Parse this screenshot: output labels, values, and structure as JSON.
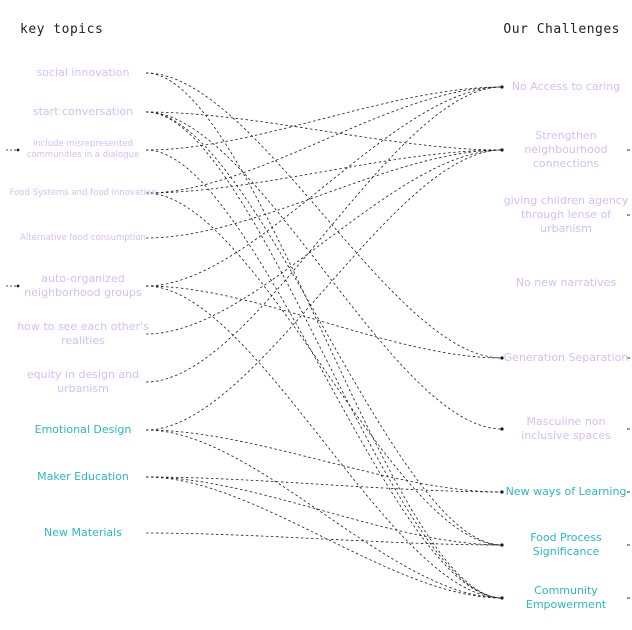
{
  "titles": {
    "left": "key topics",
    "right": "Our Challenges"
  },
  "colors": {
    "light": "#d7bdf5",
    "accent": "#2bb8c4",
    "line": "#1a1a1a"
  },
  "left_nodes": [
    {
      "id": "L1",
      "label": "social innovation",
      "style": "light",
      "size": "m"
    },
    {
      "id": "L2",
      "label": "start conversation",
      "style": "light",
      "size": "m"
    },
    {
      "id": "L3",
      "label": "include misrepresented communities in a dialogue",
      "style": "light",
      "size": "s"
    },
    {
      "id": "L4",
      "label": "Food Systems and food innovation",
      "style": "light",
      "size": "s"
    },
    {
      "id": "L5",
      "label": "Alternative food consumption",
      "style": "light",
      "size": "s"
    },
    {
      "id": "L6",
      "label": "auto-organized neighborhood groups",
      "style": "light",
      "size": "m"
    },
    {
      "id": "L7",
      "label": "how to see each other's realities",
      "style": "light",
      "size": "m"
    },
    {
      "id": "L8",
      "label": "equity in design and urbanism",
      "style": "light",
      "size": "m"
    },
    {
      "id": "L9",
      "label": "Emotional Design",
      "style": "accent",
      "size": "m"
    },
    {
      "id": "L10",
      "label": "Maker Education",
      "style": "accent",
      "size": "m"
    },
    {
      "id": "L11",
      "label": "New Materials",
      "style": "accent",
      "size": "m"
    }
  ],
  "right_nodes": [
    {
      "id": "R1",
      "label": "No Access to caring",
      "style": "light",
      "size": "m"
    },
    {
      "id": "R2",
      "label": "Strengthen neighbourhood connections",
      "style": "light",
      "size": "m"
    },
    {
      "id": "R3",
      "label": "giving children agency through lense of urbanism",
      "style": "light",
      "size": "m"
    },
    {
      "id": "R4",
      "label": "No new narratives",
      "style": "light",
      "size": "m"
    },
    {
      "id": "R5",
      "label": "Generation Separation",
      "style": "light",
      "size": "m"
    },
    {
      "id": "R6",
      "label": "Masculine non inclusive spaces",
      "style": "light",
      "size": "m"
    },
    {
      "id": "R7",
      "label": "New ways of Learning",
      "style": "accent",
      "size": "m"
    },
    {
      "id": "R8",
      "label": "Food Process Significance",
      "style": "accent",
      "size": "m"
    },
    {
      "id": "R9",
      "label": "Community Empowerment",
      "style": "accent",
      "size": "m"
    }
  ],
  "links": [
    [
      "L1",
      "R5"
    ],
    [
      "L1",
      "R9"
    ],
    [
      "L2",
      "R2"
    ],
    [
      "L2",
      "R6"
    ],
    [
      "L2",
      "R8"
    ],
    [
      "L2",
      "R9"
    ],
    [
      "L3",
      "R1"
    ],
    [
      "L3",
      "R9"
    ],
    [
      "L4",
      "R1"
    ],
    [
      "L4",
      "R2"
    ],
    [
      "L4",
      "R8"
    ],
    [
      "L5",
      "R2"
    ],
    [
      "L6",
      "R1"
    ],
    [
      "L6",
      "R5"
    ],
    [
      "L6",
      "R9"
    ],
    [
      "L7",
      "R2"
    ],
    [
      "L8",
      "R1"
    ],
    [
      "L9",
      "R2"
    ],
    [
      "L9",
      "R7"
    ],
    [
      "L9",
      "R9"
    ],
    [
      "L10",
      "R7"
    ],
    [
      "L10",
      "R8"
    ],
    [
      "L10",
      "R9"
    ],
    [
      "L11",
      "R8"
    ]
  ],
  "stub_left": [
    "L3",
    "L6"
  ],
  "stub_right": [
    "R2",
    "R3",
    "R5",
    "R6",
    "R7",
    "R8",
    "R9"
  ]
}
